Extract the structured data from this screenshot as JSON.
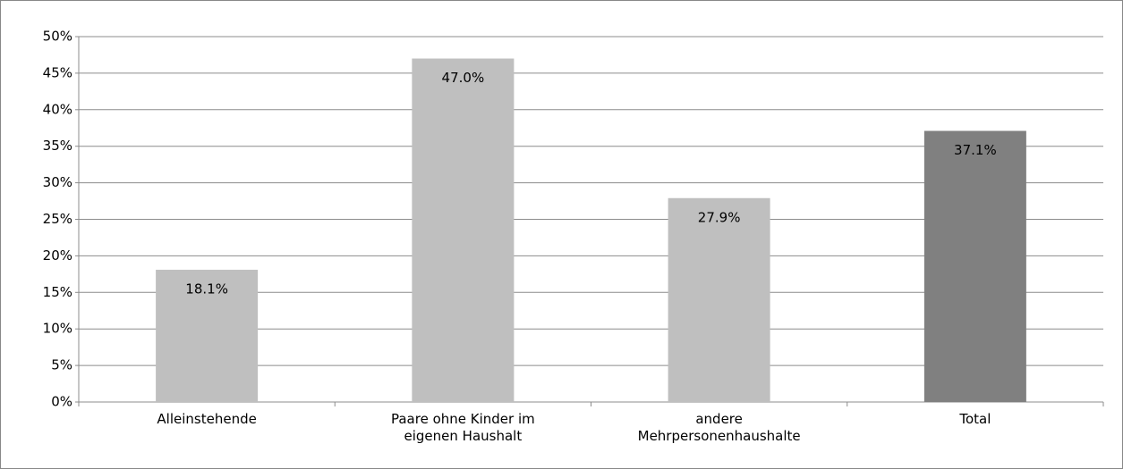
{
  "chart_data": {
    "type": "bar",
    "categories": [
      "Alleinstehende",
      "Paare ohne Kinder im eigenen Haushalt",
      "andere Mehrpersonenhaushalte",
      "Total"
    ],
    "values": [
      18.1,
      47,
      27.9,
      37.1
    ],
    "value_labels": [
      "18.1%",
      "47.0%",
      "27.9%",
      "37.1%"
    ],
    "colors": [
      "#bfbfbf",
      "#bfbfbf",
      "#bfbfbf",
      "#808080"
    ],
    "ylim": [
      0,
      50
    ],
    "yticks": [
      {
        "value": 0,
        "label": "0%"
      },
      {
        "value": 5,
        "label": "5%"
      },
      {
        "value": 10,
        "label": "10%"
      },
      {
        "value": 15,
        "label": "15%"
      },
      {
        "value": 20,
        "label": "20%"
      },
      {
        "value": 25,
        "label": "25%"
      },
      {
        "value": 30,
        "label": "30%"
      },
      {
        "value": 35,
        "label": "35%"
      },
      {
        "value": 40,
        "label": "40%"
      },
      {
        "value": 45,
        "label": "45%"
      },
      {
        "value": 50,
        "label": "50%"
      }
    ],
    "grid": true
  }
}
